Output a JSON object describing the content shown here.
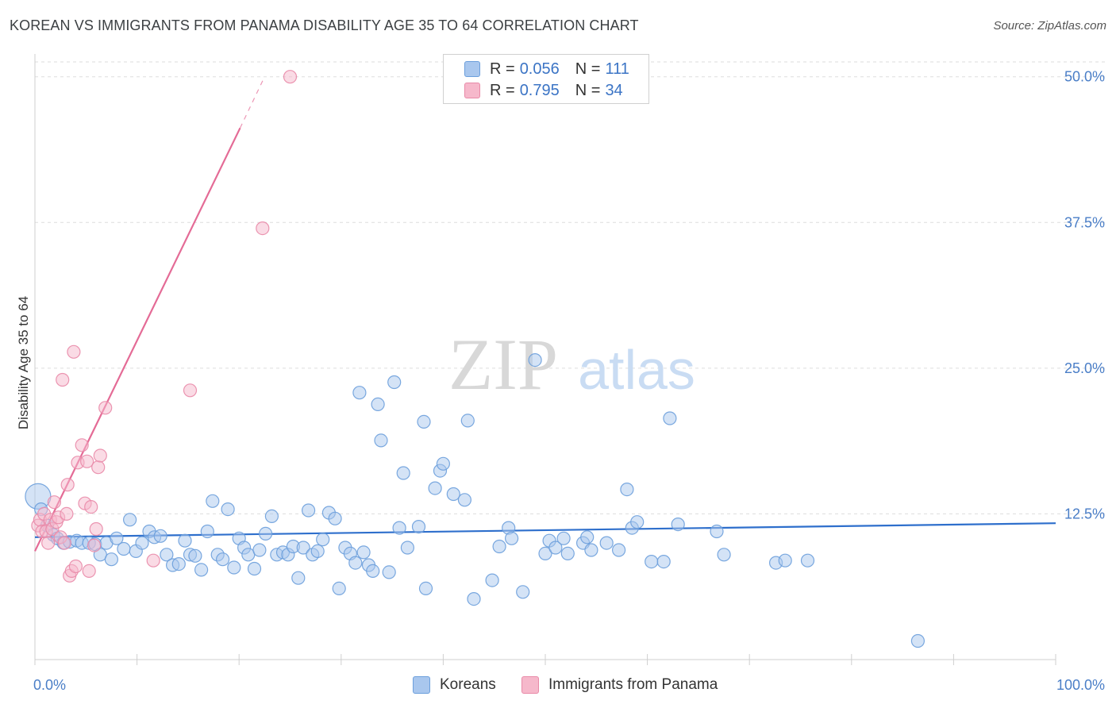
{
  "title": "KOREAN VS IMMIGRANTS FROM PANAMA DISABILITY AGE 35 TO 64 CORRELATION CHART",
  "source": "Source: ZipAtlas.com",
  "watermark": {
    "zip": "ZIP",
    "atlas": "atlas"
  },
  "colors": {
    "koreans_fill": "#a9c7ee",
    "koreans_stroke": "#6c9fdc",
    "koreans_line": "#2e6fcc",
    "panama_fill": "#f6b8cb",
    "panama_stroke": "#e98aa8",
    "panama_line": "#e46b96",
    "axis_text": "#4a7ec7",
    "grid": "#dddddd"
  },
  "legend": {
    "koreans": {
      "r_label": "R =",
      "r_value": "0.056",
      "n_label": "N =",
      "n_value": "111"
    },
    "panama": {
      "r_label": "R =",
      "r_value": "0.795",
      "n_label": "N =",
      "n_value": "34"
    }
  },
  "bottom_legend": {
    "koreans": "Koreans",
    "panama": "Immigrants from Panama"
  },
  "chart_data": {
    "type": "scatter",
    "title": "KOREAN VS IMMIGRANTS FROM PANAMA DISABILITY AGE 35 TO 64 CORRELATION CHART",
    "xlabel": "",
    "ylabel": "Disability Age 35 to 64",
    "xlim": [
      0,
      100
    ],
    "ylim": [
      0,
      52.5
    ],
    "x_tick_labels": [
      "0.0%",
      "100.0%"
    ],
    "y_ticks": [
      12.5,
      25.0,
      37.5,
      50.0
    ],
    "y_tick_labels": [
      "12.5%",
      "25.0%",
      "37.5%",
      "50.0%"
    ],
    "grid": true,
    "series": [
      {
        "name": "Koreans",
        "R": 0.056,
        "N": 111,
        "trend": {
          "x0": 0,
          "y0": 10.5,
          "x1": 100,
          "y1": 11.7
        },
        "points": [
          [
            0.3,
            14.0
          ],
          [
            0.6,
            12.9
          ],
          [
            1.2,
            11.5
          ],
          [
            1.8,
            10.7
          ],
          [
            2.2,
            10.4
          ],
          [
            2.8,
            10.0
          ],
          [
            3.4,
            10.1
          ],
          [
            4.1,
            10.2
          ],
          [
            4.6,
            10.0
          ],
          [
            5.3,
            10.0
          ],
          [
            5.9,
            9.9
          ],
          [
            6.4,
            9.0
          ],
          [
            7.0,
            10.0
          ],
          [
            7.5,
            8.6
          ],
          [
            8.0,
            10.4
          ],
          [
            8.7,
            9.5
          ],
          [
            9.3,
            12.0
          ],
          [
            9.9,
            9.3
          ],
          [
            10.5,
            10.0
          ],
          [
            11.2,
            11.0
          ],
          [
            11.7,
            10.5
          ],
          [
            12.3,
            10.6
          ],
          [
            12.9,
            9.0
          ],
          [
            13.5,
            8.1
          ],
          [
            14.1,
            8.2
          ],
          [
            14.7,
            10.2
          ],
          [
            15.2,
            9.0
          ],
          [
            15.7,
            8.9
          ],
          [
            16.3,
            7.7
          ],
          [
            16.9,
            11.0
          ],
          [
            17.4,
            13.6
          ],
          [
            17.9,
            9.0
          ],
          [
            18.4,
            8.6
          ],
          [
            18.9,
            12.9
          ],
          [
            19.5,
            7.9
          ],
          [
            20.0,
            10.4
          ],
          [
            20.5,
            9.6
          ],
          [
            20.9,
            9.0
          ],
          [
            21.5,
            7.8
          ],
          [
            22.0,
            9.4
          ],
          [
            22.6,
            10.8
          ],
          [
            23.2,
            12.3
          ],
          [
            23.7,
            9.0
          ],
          [
            24.3,
            9.2
          ],
          [
            24.8,
            9.0
          ],
          [
            25.3,
            9.7
          ],
          [
            25.8,
            7.0
          ],
          [
            26.3,
            9.6
          ],
          [
            26.8,
            12.8
          ],
          [
            27.2,
            9.0
          ],
          [
            27.7,
            9.3
          ],
          [
            28.2,
            10.3
          ],
          [
            28.8,
            12.6
          ],
          [
            29.4,
            12.1
          ],
          [
            29.8,
            6.1
          ],
          [
            30.4,
            9.6
          ],
          [
            30.9,
            9.1
          ],
          [
            31.4,
            8.3
          ],
          [
            31.8,
            22.9
          ],
          [
            32.2,
            9.2
          ],
          [
            32.7,
            8.1
          ],
          [
            33.1,
            7.6
          ],
          [
            33.6,
            21.9
          ],
          [
            33.9,
            18.8
          ],
          [
            34.7,
            7.5
          ],
          [
            35.2,
            23.8
          ],
          [
            35.7,
            11.3
          ],
          [
            36.1,
            16.0
          ],
          [
            36.5,
            9.6
          ],
          [
            37.6,
            11.4
          ],
          [
            38.1,
            20.4
          ],
          [
            38.3,
            6.1
          ],
          [
            39.2,
            14.7
          ],
          [
            39.7,
            16.2
          ],
          [
            40.0,
            16.8
          ],
          [
            41.0,
            14.2
          ],
          [
            42.1,
            13.7
          ],
          [
            42.4,
            20.5
          ],
          [
            43.0,
            5.2
          ],
          [
            44.8,
            6.8
          ],
          [
            45.5,
            9.7
          ],
          [
            46.4,
            11.3
          ],
          [
            46.7,
            10.4
          ],
          [
            47.8,
            5.8
          ],
          [
            49.0,
            25.7
          ],
          [
            50.0,
            9.1
          ],
          [
            50.4,
            10.2
          ],
          [
            51.0,
            9.6
          ],
          [
            51.8,
            10.4
          ],
          [
            52.2,
            9.1
          ],
          [
            53.7,
            10.0
          ],
          [
            54.1,
            10.5
          ],
          [
            54.5,
            9.4
          ],
          [
            56.0,
            10.0
          ],
          [
            57.2,
            9.4
          ],
          [
            58.0,
            14.6
          ],
          [
            58.5,
            11.3
          ],
          [
            59.0,
            11.8
          ],
          [
            60.4,
            8.4
          ],
          [
            61.6,
            8.4
          ],
          [
            62.2,
            20.7
          ],
          [
            63.0,
            11.6
          ],
          [
            66.8,
            11.0
          ],
          [
            67.5,
            9.0
          ],
          [
            72.6,
            8.3
          ],
          [
            73.5,
            8.5
          ],
          [
            75.7,
            8.5
          ],
          [
            86.5,
            1.6
          ]
        ]
      },
      {
        "name": "Immigrants from Panama",
        "R": 0.795,
        "N": 34,
        "trend": {
          "x0": 0,
          "y0": 9.3,
          "x1": 20.1,
          "y1": 45.6,
          "dash_x1": 22.5,
          "dash_y1": 50.0
        },
        "points": [
          [
            0.3,
            11.5
          ],
          [
            0.5,
            12.0
          ],
          [
            0.7,
            11.0
          ],
          [
            0.9,
            12.5
          ],
          [
            1.1,
            11.0
          ],
          [
            1.3,
            10.0
          ],
          [
            1.5,
            12.0
          ],
          [
            1.7,
            11.2
          ],
          [
            1.9,
            13.5
          ],
          [
            2.1,
            11.8
          ],
          [
            2.3,
            12.2
          ],
          [
            2.5,
            10.5
          ],
          [
            2.7,
            24.0
          ],
          [
            2.9,
            10.0
          ],
          [
            3.1,
            12.5
          ],
          [
            3.2,
            15.0
          ],
          [
            3.4,
            7.2
          ],
          [
            3.6,
            7.6
          ],
          [
            3.8,
            26.4
          ],
          [
            4.0,
            8.0
          ],
          [
            4.2,
            16.9
          ],
          [
            4.6,
            18.4
          ],
          [
            4.9,
            13.4
          ],
          [
            5.1,
            17.0
          ],
          [
            5.3,
            7.6
          ],
          [
            5.5,
            13.1
          ],
          [
            5.8,
            9.8
          ],
          [
            6.0,
            11.2
          ],
          [
            6.2,
            16.5
          ],
          [
            6.4,
            17.5
          ],
          [
            6.9,
            21.6
          ],
          [
            11.6,
            8.5
          ],
          [
            15.2,
            23.1
          ],
          [
            22.3,
            37.0
          ],
          [
            25.0,
            50.0
          ]
        ]
      }
    ]
  }
}
